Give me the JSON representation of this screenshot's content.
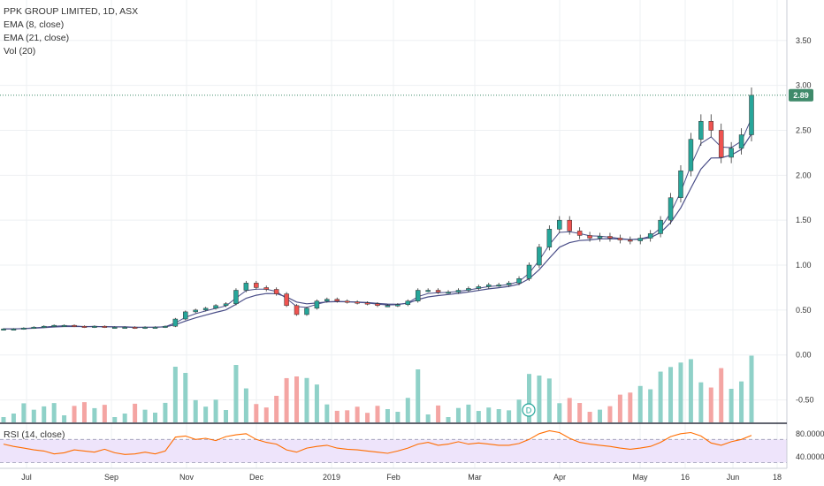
{
  "legend": {
    "symbol": "PPK GROUP LIMITED, 1D, ASX",
    "ema8": "EMA (8, close)",
    "ema21": "EMA (21, close)",
    "vol": "Vol (20)"
  },
  "rsi_legend": "RSI (14, close)",
  "last_price_tag": "2.89",
  "dividend_marker": "D",
  "colors": {
    "up": "#26a69a",
    "down": "#ef5350",
    "vol_up": "#8fd1c8",
    "vol_down": "#f4a5a3",
    "ema": "#4a4e88",
    "rsi": "#ff6d00",
    "rsi_band": "#eee4fb",
    "last_price": "#3f8a6a"
  },
  "chart_data": [
    {
      "type": "candlestick",
      "title": "PPK GROUP LIMITED, 1D, ASX",
      "x_ticks": [
        "Jul",
        "Sep",
        "Nov",
        "Dec",
        "2019",
        "Feb",
        "Mar",
        "Apr",
        "May",
        "16",
        "Jun",
        "18"
      ],
      "y_ticks": [
        "3.50",
        "3.00",
        "2.50",
        "2.00",
        "1.50",
        "1.00",
        "0.50",
        "0.00",
        "-0.50"
      ],
      "ylim": [
        -0.75,
        3.95
      ],
      "last_price": 2.89,
      "close_weekly": [
        0.29,
        0.29,
        0.3,
        0.31,
        0.32,
        0.33,
        0.33,
        0.32,
        0.31,
        0.32,
        0.31,
        0.31,
        0.31,
        0.3,
        0.31,
        0.31,
        0.32,
        0.4,
        0.48,
        0.5,
        0.52,
        0.55,
        0.57,
        0.72,
        0.8,
        0.75,
        0.73,
        0.68,
        0.55,
        0.45,
        0.52,
        0.6,
        0.62,
        0.6,
        0.59,
        0.58,
        0.57,
        0.55,
        0.55,
        0.56,
        0.6,
        0.72,
        0.72,
        0.7,
        0.7,
        0.72,
        0.74,
        0.76,
        0.78,
        0.78,
        0.8,
        0.85,
        1.0,
        1.2,
        1.4,
        1.5,
        1.38,
        1.33,
        1.3,
        1.32,
        1.3,
        1.28,
        1.27,
        1.3,
        1.35,
        1.5,
        1.75,
        2.05,
        2.4,
        2.6,
        2.5,
        2.2,
        2.3,
        2.45,
        2.89
      ],
      "series": [
        {
          "name": "EMA (8, close)"
        },
        {
          "name": "EMA (21, close)"
        },
        {
          "name": "Vol (20)"
        }
      ]
    },
    {
      "type": "line",
      "title": "RSI (14, close)",
      "y_ticks": [
        "80.0000",
        "40.0000"
      ],
      "band": [
        30,
        70
      ],
      "ylim": [
        20,
        95
      ],
      "values": [
        62,
        58,
        55,
        52,
        50,
        45,
        47,
        52,
        50,
        48,
        53,
        47,
        44,
        45,
        48,
        45,
        50,
        74,
        76,
        70,
        72,
        68,
        75,
        78,
        80,
        70,
        65,
        62,
        52,
        48,
        55,
        58,
        60,
        55,
        53,
        52,
        50,
        48,
        46,
        50,
        55,
        62,
        65,
        60,
        62,
        66,
        62,
        64,
        62,
        60,
        60,
        63,
        70,
        80,
        85,
        82,
        72,
        65,
        62,
        60,
        58,
        55,
        53,
        55,
        58,
        65,
        75,
        80,
        82,
        76,
        64,
        60,
        66,
        70,
        77
      ]
    }
  ]
}
